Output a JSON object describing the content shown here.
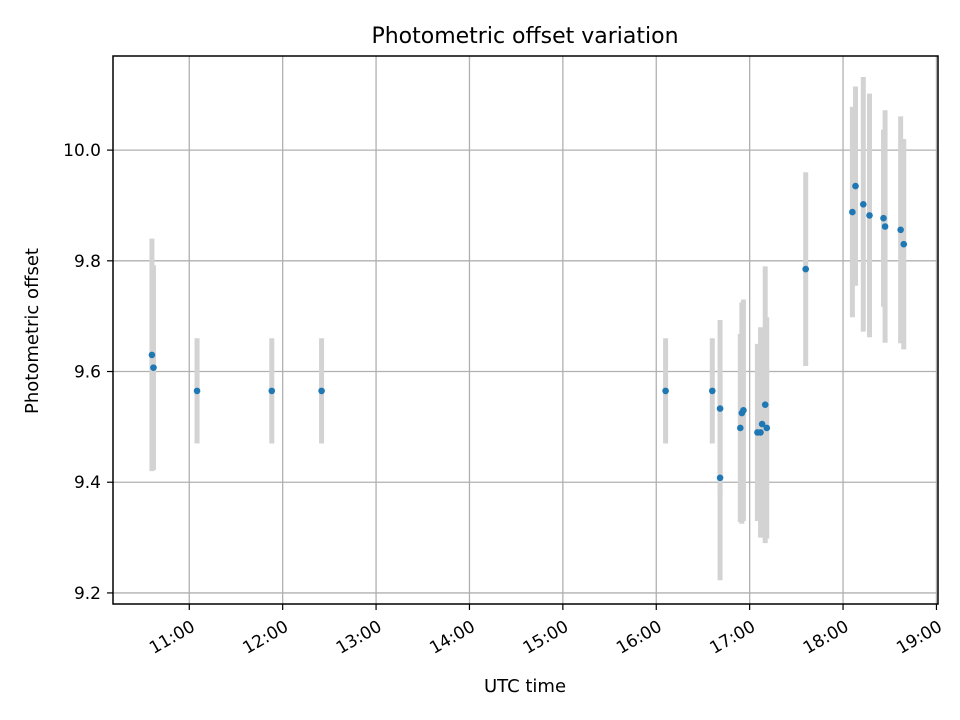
{
  "chart_data": {
    "type": "scatter",
    "title": "Photometric offset variation",
    "xlabel": "UTC time",
    "ylabel": "Photometric offset",
    "x_ticks": [
      "11:00",
      "12:00",
      "13:00",
      "14:00",
      "15:00",
      "16:00",
      "17:00",
      "18:00",
      "19:00"
    ],
    "y_ticks": [
      9.2,
      9.4,
      9.6,
      9.8,
      10.0
    ],
    "ylim": [
      9.18,
      10.17
    ],
    "xlim": [
      "10:11",
      "19:01"
    ],
    "grid": true,
    "errorbars": true,
    "colors": {
      "point": "#1f77b4",
      "errorbar": "#d3d3d3"
    },
    "points": [
      {
        "x": "10:36",
        "y": 9.63,
        "err": 0.21
      },
      {
        "x": "10:37",
        "y": 9.607,
        "err": 0.185
      },
      {
        "x": "11:05",
        "y": 9.565,
        "err": 0.095
      },
      {
        "x": "11:53",
        "y": 9.565,
        "err": 0.095
      },
      {
        "x": "12:25",
        "y": 9.565,
        "err": 0.095
      },
      {
        "x": "16:06",
        "y": 9.565,
        "err": 0.095
      },
      {
        "x": "16:36",
        "y": 9.565,
        "err": 0.095
      },
      {
        "x": "16:41",
        "y": 9.533,
        "err": 0.16
      },
      {
        "x": "16:41",
        "y": 9.408,
        "err": 0.185
      },
      {
        "x": "16:54",
        "y": 9.498,
        "err": 0.17
      },
      {
        "x": "16:55",
        "y": 9.525,
        "err": 0.2
      },
      {
        "x": "16:56",
        "y": 9.53,
        "err": 0.2
      },
      {
        "x": "17:05",
        "y": 9.49,
        "err": 0.16
      },
      {
        "x": "17:07",
        "y": 9.49,
        "err": 0.19
      },
      {
        "x": "17:08",
        "y": 9.505,
        "err": 0.17
      },
      {
        "x": "17:10",
        "y": 9.54,
        "err": 0.25
      },
      {
        "x": "17:11",
        "y": 9.498,
        "err": 0.2
      },
      {
        "x": "17:36",
        "y": 9.785,
        "err": 0.175
      },
      {
        "x": "18:06",
        "y": 9.888,
        "err": 0.19
      },
      {
        "x": "18:08",
        "y": 9.935,
        "err": 0.18
      },
      {
        "x": "18:13",
        "y": 9.902,
        "err": 0.23
      },
      {
        "x": "18:17",
        "y": 9.882,
        "err": 0.22
      },
      {
        "x": "18:26",
        "y": 9.877,
        "err": 0.16
      },
      {
        "x": "18:27",
        "y": 9.862,
        "err": 0.21
      },
      {
        "x": "18:37",
        "y": 9.856,
        "err": 0.205
      },
      {
        "x": "18:39",
        "y": 9.83,
        "err": 0.19
      }
    ]
  }
}
